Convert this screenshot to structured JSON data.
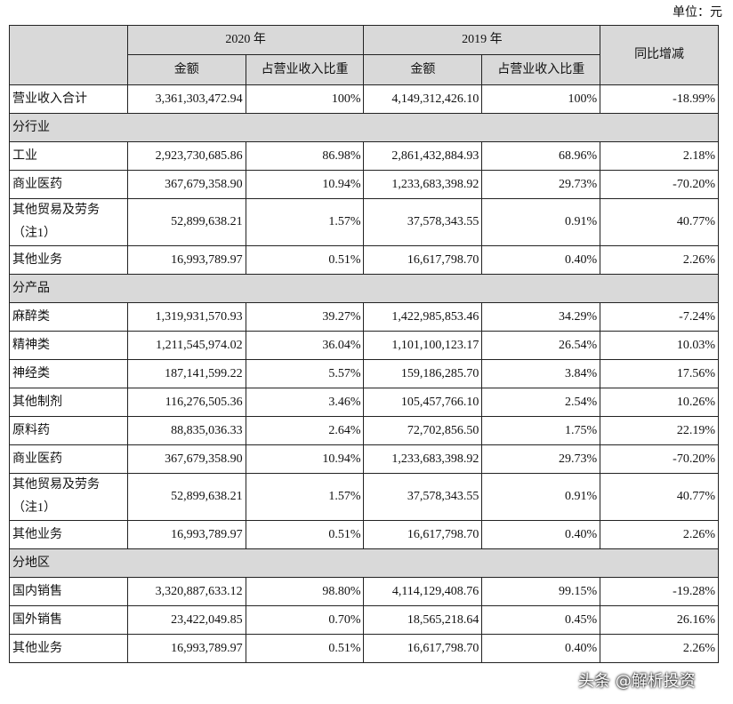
{
  "unit": "单位：元",
  "table": {
    "header": {
      "year_2020": "2020 年",
      "year_2019": "2019 年",
      "change": "同比增减",
      "amount_2020": "金额",
      "ratio_2020": "占营业收入比重",
      "amount_2019": "金额",
      "ratio_2019": "占营业收入比重"
    },
    "rows": [
      [
        "营业收入合计",
        "3,361,303,472.94",
        "100%",
        "4,149,312,426.10",
        "100%",
        "-18.99%"
      ],
      [
        "分行业"
      ],
      [
        "工业",
        "2,923,730,685.86",
        "86.98%",
        "2,861,432,884.93",
        "68.96%",
        "2.18%"
      ],
      [
        "商业医药",
        "367,679,358.90",
        "10.94%",
        "1,233,683,398.92",
        "29.73%",
        "-70.20%"
      ],
      [
        "其他贸易及劳务（注1）",
        "52,899,638.21",
        "1.57%",
        "37,578,343.55",
        "0.91%",
        "40.77%"
      ],
      [
        "其他业务",
        "16,993,789.97",
        "0.51%",
        "16,617,798.70",
        "0.40%",
        "2.26%"
      ],
      [
        "分产品"
      ],
      [
        "麻醉类",
        "1,319,931,570.93",
        "39.27%",
        "1,422,985,853.46",
        "34.29%",
        "-7.24%"
      ],
      [
        "精神类",
        "1,211,545,974.02",
        "36.04%",
        "1,101,100,123.17",
        "26.54%",
        "10.03%"
      ],
      [
        "神经类",
        "187,141,599.22",
        "5.57%",
        "159,186,285.70",
        "3.84%",
        "17.56%"
      ],
      [
        "其他制剂",
        "116,276,505.36",
        "3.46%",
        "105,457,766.10",
        "2.54%",
        "10.26%"
      ],
      [
        "原料药",
        "88,835,036.33",
        "2.64%",
        "72,702,856.50",
        "1.75%",
        "22.19%"
      ],
      [
        "商业医药",
        "367,679,358.90",
        "10.94%",
        "1,233,683,398.92",
        "29.73%",
        "-70.20%"
      ],
      [
        "其他贸易及劳务（注1）",
        "52,899,638.21",
        "1.57%",
        "37,578,343.55",
        "0.91%",
        "40.77%"
      ],
      [
        "其他业务",
        "16,993,789.97",
        "0.51%",
        "16,617,798.70",
        "0.40%",
        "2.26%"
      ],
      [
        "分地区"
      ],
      [
        "国内销售",
        "3,320,887,633.12",
        "98.80%",
        "4,114,129,408.76",
        "99.15%",
        "-19.28%"
      ],
      [
        "国外销售",
        "23,422,049.85",
        "0.70%",
        "18,565,218.64",
        "0.45%",
        "26.16%"
      ],
      [
        "其他业务",
        "16,993,789.97",
        "0.51%",
        "16,617,798.70",
        "0.40%",
        "2.26%"
      ]
    ]
  },
  "watermark": "头条 @解析投资"
}
